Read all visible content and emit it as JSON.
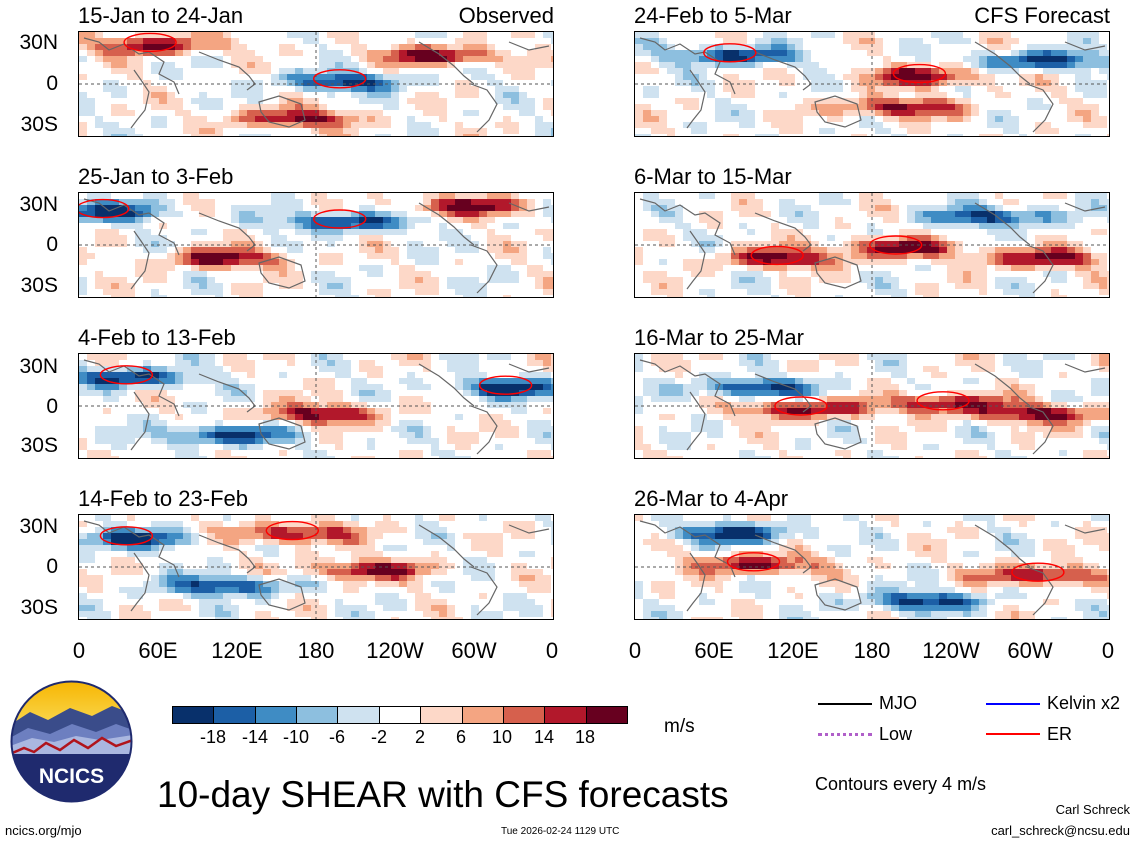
{
  "panels": {
    "left": [
      {
        "title": "15-Jan to 24-Jan",
        "tag": "Observed"
      },
      {
        "title": "25-Jan to 3-Feb",
        "tag": ""
      },
      {
        "title": "4-Feb to 13-Feb",
        "tag": ""
      },
      {
        "title": "14-Feb to 23-Feb",
        "tag": ""
      }
    ],
    "right": [
      {
        "title": "24-Feb to 5-Mar",
        "tag": "CFS Forecast"
      },
      {
        "title": "6-Mar to 15-Mar",
        "tag": ""
      },
      {
        "title": "16-Mar to 25-Mar",
        "tag": ""
      },
      {
        "title": "26-Mar to 4-Apr",
        "tag": ""
      }
    ]
  },
  "axes": {
    "lat_labels": [
      "30N",
      "0",
      "30S"
    ],
    "lon_labels": [
      "0",
      "60E",
      "120E",
      "180",
      "120W",
      "60W",
      "0"
    ]
  },
  "colorbar": {
    "labels": [
      "-18",
      "-14",
      "-10",
      "-6",
      "-2",
      "2",
      "6",
      "10",
      "14",
      "18"
    ],
    "colors": [
      "#08306b",
      "#1c5fa6",
      "#3f8cc4",
      "#8dbfdf",
      "#cfe2f0",
      "#ffffff",
      "#fdd8c8",
      "#f4a582",
      "#d6604d",
      "#b2182b",
      "#67001f"
    ],
    "unit": "m/s"
  },
  "legend": {
    "items": [
      {
        "label": "MJO",
        "color": "#000000"
      },
      {
        "label": "Kelvin x2",
        "color": "#0000ff"
      },
      {
        "label": "Low",
        "color": "#b05fc9"
      },
      {
        "label": "ER",
        "color": "#ff0000"
      }
    ],
    "contour_note": "Contours every 4 m/s"
  },
  "footer": {
    "main_title": "10-day SHEAR with CFS forecasts",
    "logo_text": "NCICS",
    "site": "ncics.org/mjo",
    "timestamp": "Tue 2026-02-24 1129 UTC",
    "author": "Carl Schreck",
    "email": "carl_schreck@ncsu.edu"
  }
}
